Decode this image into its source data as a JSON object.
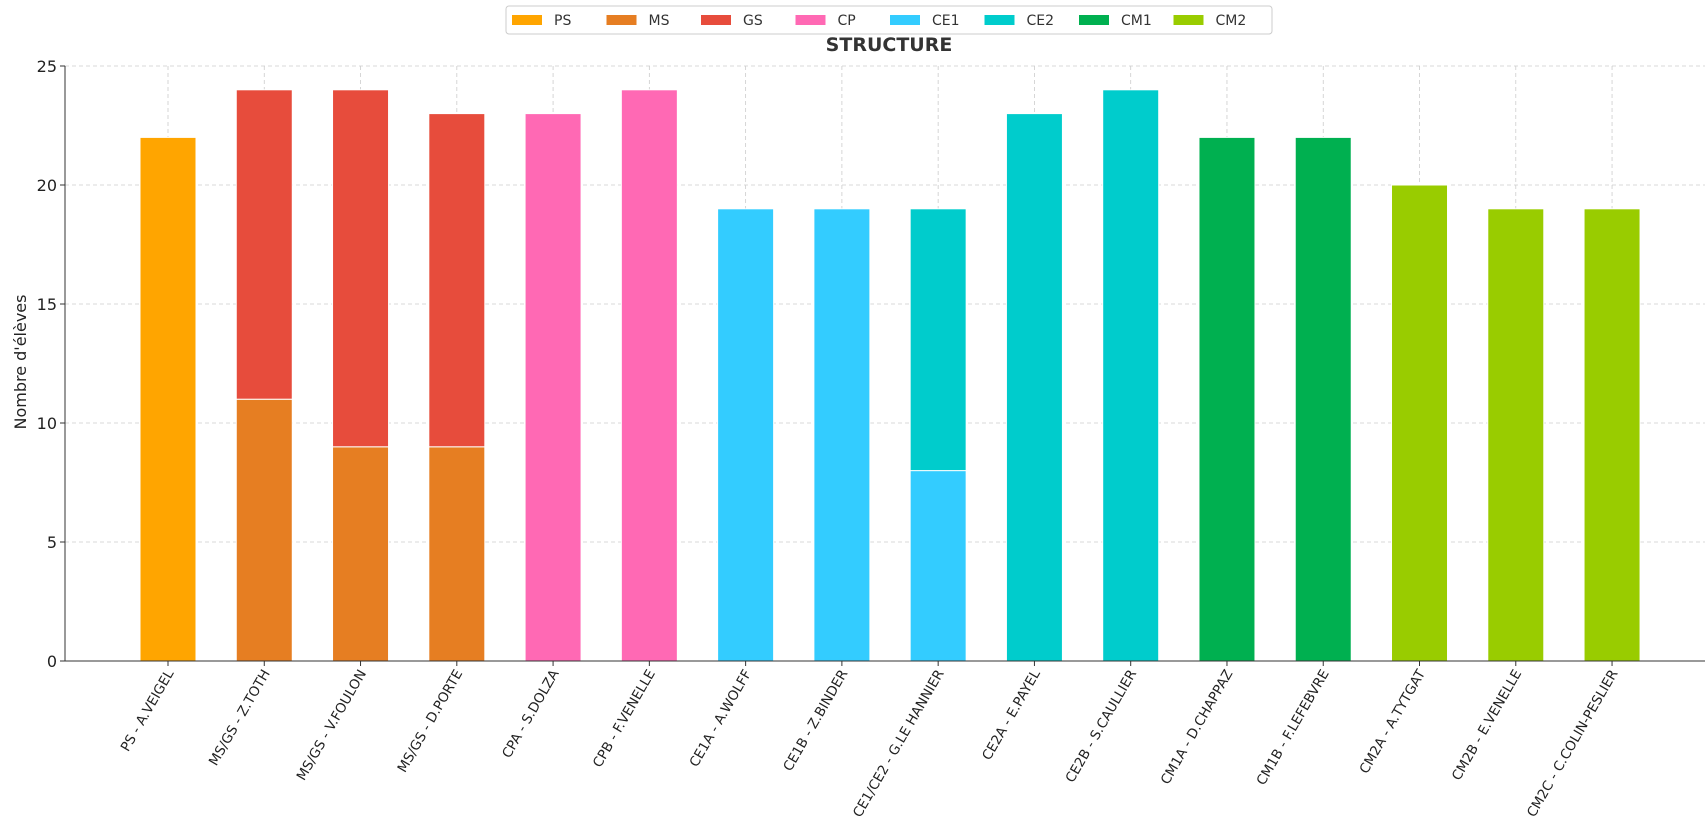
{
  "chart_data": {
    "type": "bar",
    "stacked": true,
    "title": "STRUCTURE",
    "xlabel": "",
    "ylabel": "Nombre d'élèves",
    "ylim": [
      0,
      25
    ],
    "yticks": [
      0,
      5,
      10,
      15,
      20,
      25
    ],
    "grid": true,
    "legend_position": "top-center",
    "categories": [
      "PS - A.VEIGEL",
      "MS/GS - Z.TOTH",
      "MS/GS - V.FOULON",
      "MS/GS - D.PORTE",
      "CPA - S.DOLZA",
      "CPB - F.VENELLE",
      "CE1A - A.WOLFF",
      "CE1B - Z.BINDER",
      "CE1/CE2 - G.LE HANNIER",
      "CE2A - E.PAYEL",
      "CE2B - S.CAULLIER",
      "CM1A - D.CHAPPAZ",
      "CM1B - F.LEFEBVRE",
      "CM2A - A.TYTGAT",
      "CM2B - E.VENELLE",
      "CM2C - C.COLIN-PESLIER"
    ],
    "series": [
      {
        "name": "PS",
        "color": "#FFA500",
        "values": [
          22,
          0,
          0,
          0,
          0,
          0,
          0,
          0,
          0,
          0,
          0,
          0,
          0,
          0,
          0,
          0
        ]
      },
      {
        "name": "MS",
        "color": "#E67E22",
        "values": [
          0,
          11,
          9,
          9,
          0,
          0,
          0,
          0,
          0,
          0,
          0,
          0,
          0,
          0,
          0,
          0
        ]
      },
      {
        "name": "GS",
        "color": "#E74C3C",
        "values": [
          0,
          13,
          15,
          14,
          0,
          0,
          0,
          0,
          0,
          0,
          0,
          0,
          0,
          0,
          0,
          0
        ]
      },
      {
        "name": "CP",
        "color": "#FF69B4",
        "values": [
          0,
          0,
          0,
          0,
          23,
          24,
          0,
          0,
          0,
          0,
          0,
          0,
          0,
          0,
          0,
          0
        ]
      },
      {
        "name": "CE1",
        "color": "#33CCFF",
        "values": [
          0,
          0,
          0,
          0,
          0,
          0,
          19,
          19,
          8,
          0,
          0,
          0,
          0,
          0,
          0,
          0
        ]
      },
      {
        "name": "CE2",
        "color": "#00CCCC",
        "values": [
          0,
          0,
          0,
          0,
          0,
          0,
          0,
          0,
          11,
          23,
          24,
          0,
          0,
          0,
          0,
          0
        ]
      },
      {
        "name": "CM1",
        "color": "#00B050",
        "values": [
          0,
          0,
          0,
          0,
          0,
          0,
          0,
          0,
          0,
          0,
          0,
          22,
          22,
          0,
          0,
          0
        ]
      },
      {
        "name": "CM2",
        "color": "#99CC00",
        "values": [
          0,
          0,
          0,
          0,
          0,
          0,
          0,
          0,
          0,
          0,
          0,
          0,
          0,
          20,
          19,
          19
        ]
      }
    ]
  }
}
